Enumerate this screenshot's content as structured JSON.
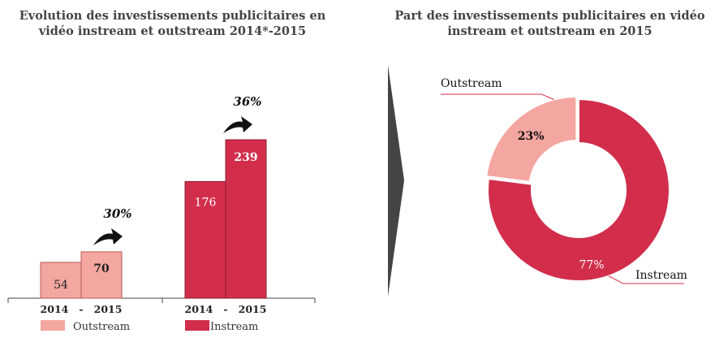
{
  "left_chart_title": "Evolution des investissements publicitaires en vidéo instream et outstream 2014*-2015",
  "right_chart_title": "Part des investissements publicitaires en vidéo instream et outstream en 2015",
  "colors": {
    "outstream": "#f4a6a0",
    "instream": "#d22e4c",
    "outstream_border": "#b85a5a",
    "instream_border": "#8e1d2f",
    "arrow_divider": "#444444"
  },
  "chart_data": [
    {
      "type": "bar",
      "title": "Evolution des investissements publicitaires en vidéo instream et outstream 2014*-2015",
      "categories": [
        "2014",
        "2015"
      ],
      "group_tick_label": "2014   -   2015",
      "series": [
        {
          "name": "Outstream",
          "values": [
            54,
            70
          ],
          "growth_label": "30%"
        },
        {
          "name": "Instream",
          "values": [
            176,
            239
          ],
          "growth_label": "36%"
        }
      ],
      "ylim": [
        0,
        260
      ],
      "legend": [
        "Outstream",
        "Instream"
      ]
    },
    {
      "type": "pie",
      "title": "Part des investissements publicitaires en vidéo instream et outstream en 2015",
      "labels": [
        "Outstream",
        "Instream"
      ],
      "values": [
        23,
        77
      ],
      "value_labels": [
        "23%",
        "77%"
      ]
    }
  ]
}
